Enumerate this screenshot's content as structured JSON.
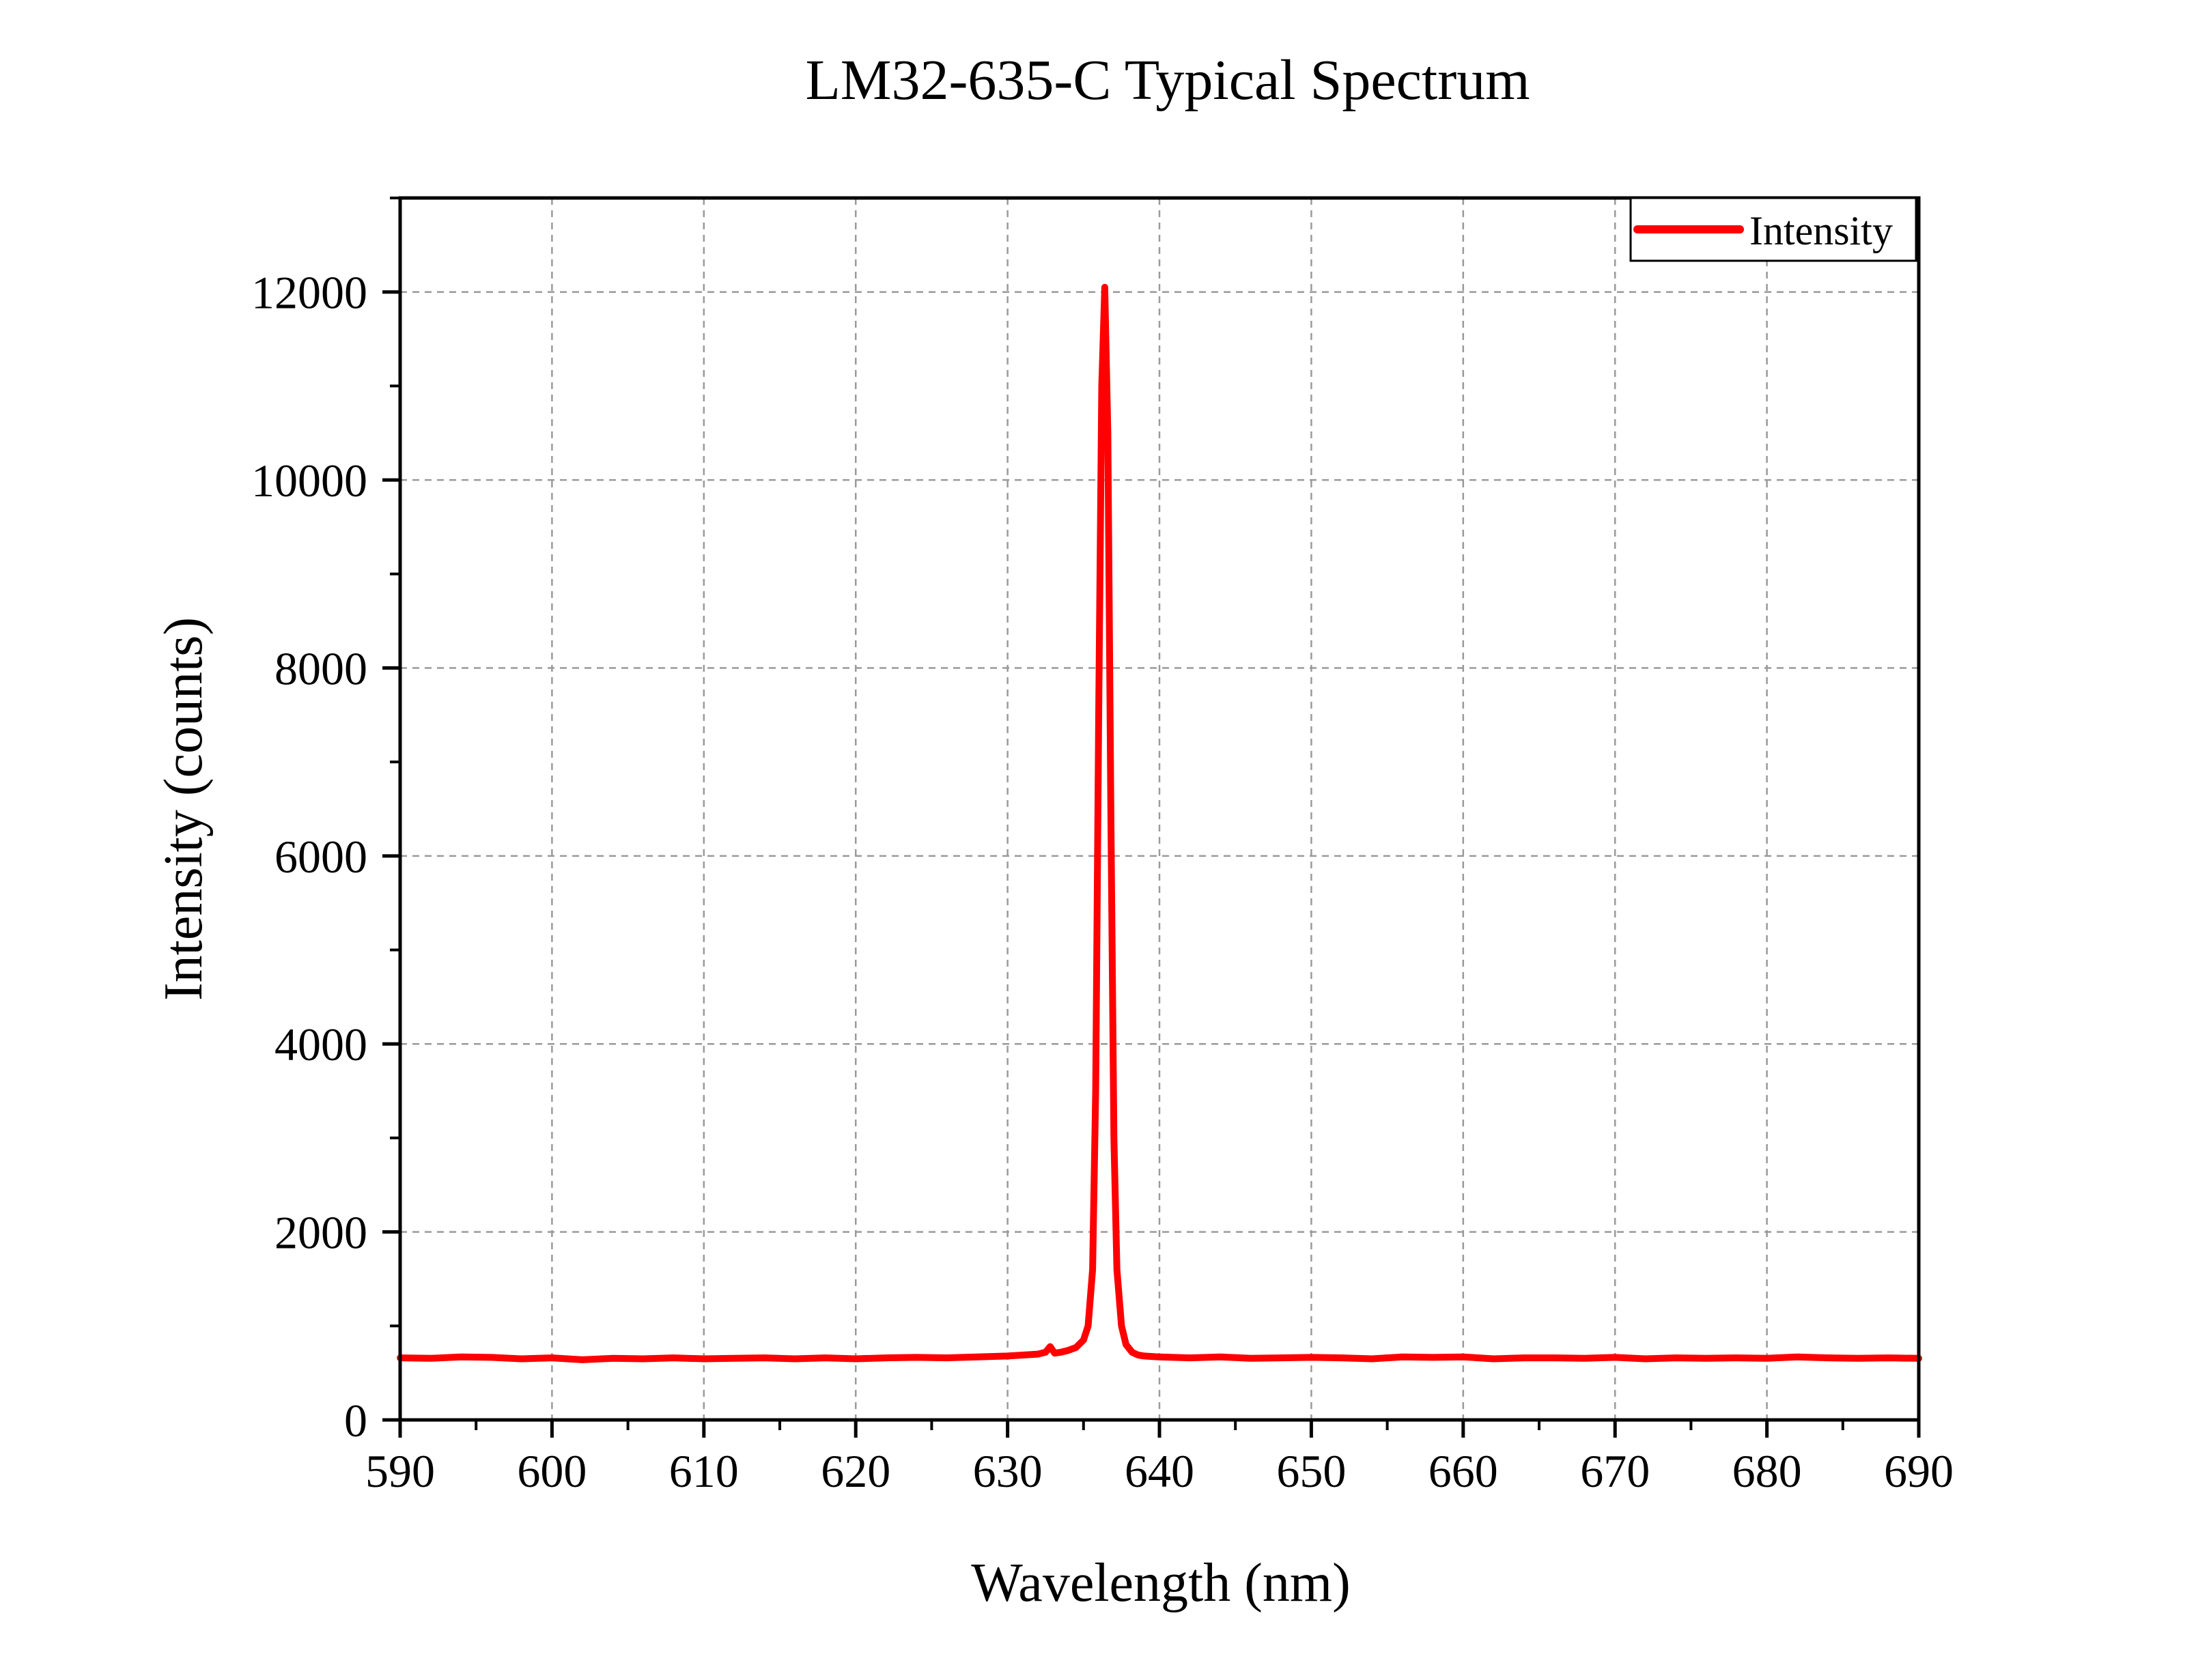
{
  "chart_data": {
    "type": "line",
    "title": "LM32-635-C Typical Spectrum",
    "xlabel": "Wavelength (nm)",
    "ylabel": "Intensity (counts)",
    "xlim": [
      590,
      690
    ],
    "ylim": [
      0,
      13000
    ],
    "x_ticks": [
      590,
      600,
      610,
      620,
      630,
      640,
      650,
      660,
      670,
      680,
      690
    ],
    "y_ticks": [
      0,
      2000,
      4000,
      6000,
      8000,
      10000,
      12000
    ],
    "grid": true,
    "legend": "top-right",
    "series": [
      {
        "name": "Intensity",
        "color": "#ff0000",
        "x": [
          590,
          592,
          594,
          596,
          598,
          600,
          602,
          604,
          606,
          608,
          610,
          612,
          614,
          616,
          618,
          620,
          622,
          624,
          626,
          628,
          630,
          631,
          632,
          632.5,
          632.8,
          633.1,
          633.5,
          634,
          634.5,
          635,
          635.3,
          635.6,
          635.8,
          636.0,
          636.2,
          636.4,
          636.6,
          636.8,
          637.0,
          637.2,
          637.5,
          637.8,
          638.2,
          638.6,
          639,
          639.5,
          640,
          642,
          644,
          646,
          648,
          650,
          652,
          654,
          656,
          658,
          660,
          662,
          664,
          666,
          668,
          670,
          672,
          674,
          676,
          678,
          680,
          682,
          684,
          686,
          688,
          690
        ],
        "y": [
          660,
          655,
          670,
          665,
          650,
          660,
          640,
          655,
          650,
          660,
          650,
          655,
          660,
          650,
          660,
          650,
          660,
          665,
          660,
          670,
          680,
          690,
          700,
          720,
          780,
          710,
          720,
          740,
          770,
          850,
          1000,
          1600,
          3500,
          7500,
          11000,
          12050,
          10500,
          6500,
          3000,
          1600,
          1000,
          800,
          720,
          690,
          680,
          675,
          670,
          660,
          670,
          655,
          660,
          665,
          660,
          650,
          670,
          665,
          670,
          650,
          660,
          660,
          655,
          665,
          650,
          660,
          655,
          660,
          655,
          670,
          660,
          655,
          660,
          655
        ]
      }
    ]
  }
}
